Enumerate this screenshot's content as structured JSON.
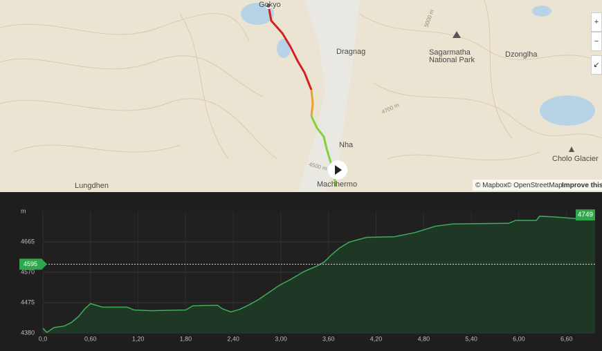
{
  "map": {
    "places": [
      "Gokyo",
      "Dragnag",
      "Sagarmatha",
      "National Park",
      "Dzonglha",
      "Nha",
      "Machhermo",
      "Lungdhen",
      "Cholo Glacier"
    ],
    "contours": [
      "5000 m",
      "4700 m",
      "4500 m"
    ],
    "attribution": [
      "© Mapbox",
      "© OpenStreetMap",
      "Improve this"
    ]
  },
  "chart_data": {
    "type": "area",
    "y_label": "m",
    "x": [
      0,
      0.05,
      0.14,
      0.27,
      0.36,
      0.45,
      0.53,
      0.6,
      0.75,
      1.06,
      1.15,
      1.36,
      1.8,
      1.89,
      2.2,
      2.26,
      2.37,
      2.48,
      2.59,
      2.72,
      2.85,
      2.98,
      3.11,
      3.29,
      3.46,
      3.55,
      3.64,
      3.74,
      3.86,
      4.08,
      4.43,
      4.69,
      4.95,
      5.17,
      5.87,
      5.96,
      6.22,
      6.26,
      6.44,
      6.7,
      6.96
    ],
    "values": [
      4395,
      4382,
      4397,
      4402,
      4413,
      4432,
      4456,
      4472,
      4461,
      4461,
      4452,
      4450,
      4452,
      4465,
      4467,
      4456,
      4446,
      4454,
      4467,
      4485,
      4507,
      4529,
      4546,
      4572,
      4590,
      4603,
      4625,
      4646,
      4664,
      4679,
      4681,
      4694,
      4714,
      4721,
      4723,
      4732,
      4732,
      4745,
      4743,
      4738,
      4738
    ],
    "color": "#3fae5a",
    "xlim": [
      0,
      6.96
    ],
    "ylim": [
      4380,
      4760
    ],
    "xticks": [
      {
        "value": 0,
        "label": "0,0"
      },
      {
        "value": 0.6,
        "label": "0,60"
      },
      {
        "value": 1.2,
        "label": "1,20"
      },
      {
        "value": 1.8,
        "label": "1,80"
      },
      {
        "value": 2.4,
        "label": "2,40"
      },
      {
        "value": 3.0,
        "label": "3,00"
      },
      {
        "value": 3.6,
        "label": "3,60"
      },
      {
        "value": 4.2,
        "label": "4,20"
      },
      {
        "value": 4.8,
        "label": "4,80"
      },
      {
        "value": 5.4,
        "label": "5,40"
      },
      {
        "value": 6.0,
        "label": "6,00"
      },
      {
        "value": 6.6,
        "label": "6,60"
      }
    ],
    "yticks": [
      4380,
      4475,
      4570,
      4665
    ],
    "reference_line": 4595,
    "max_marker": 4749,
    "grid": true
  }
}
